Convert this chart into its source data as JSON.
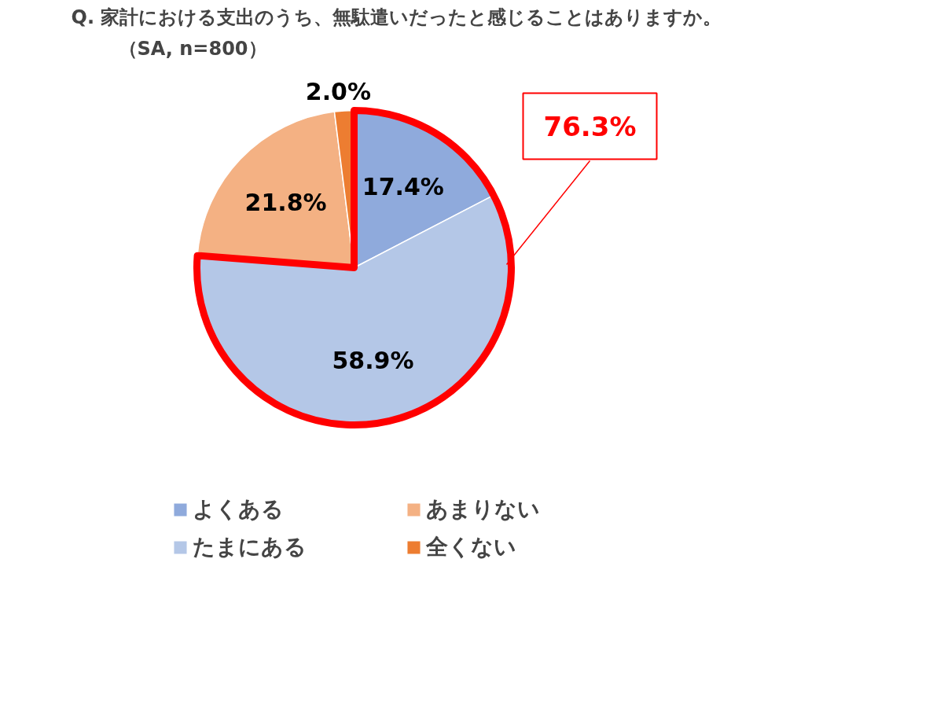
{
  "chart_data": {
    "type": "pie",
    "title": "Q. 家計における支出のうち、無駄遣いだったと感じることはありますか。",
    "subtitle": "（SA, n=800）",
    "categories": [
      "よくある",
      "たまにある",
      "あまりない",
      "全くない"
    ],
    "values": [
      17.4,
      58.9,
      21.8,
      2.0
    ],
    "colors": [
      "#8faadc",
      "#b4c7e7",
      "#f4b183",
      "#ed7d31"
    ],
    "value_labels": [
      "17.4%",
      "58.9%",
      "21.8%",
      "2.0%"
    ],
    "annotations": [
      "76.3%"
    ],
    "legend": "bottom"
  }
}
